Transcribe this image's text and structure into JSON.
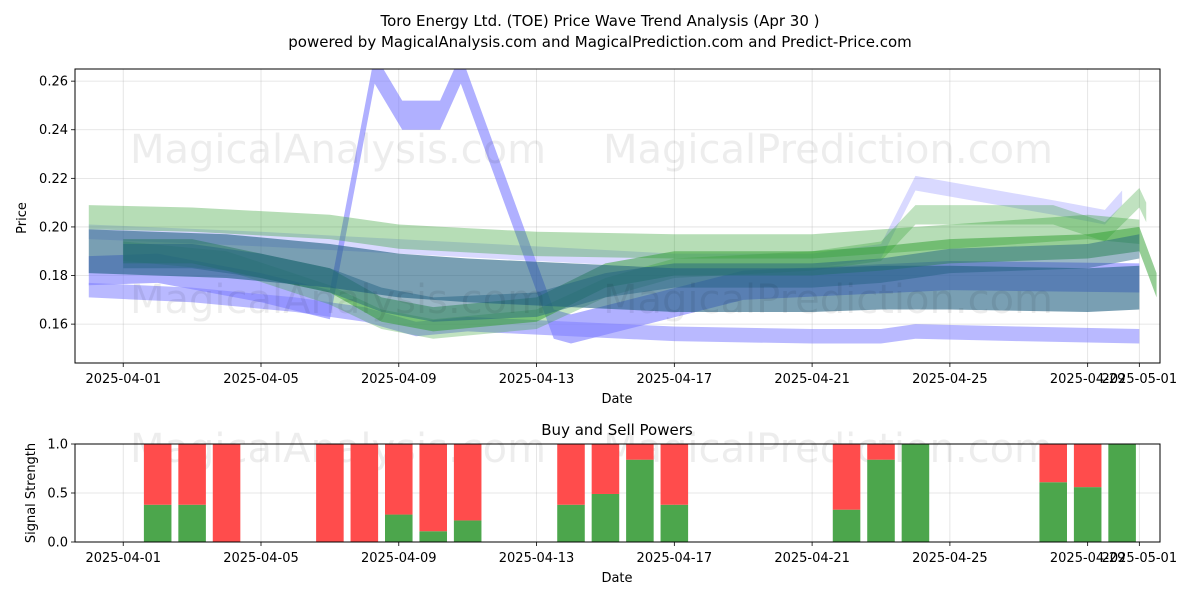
{
  "title_line1": "Toro Energy Ltd. (TOE) Price Wave Trend Analysis (Apr 30 )",
  "title_line2": "powered by MagicalAnalysis.com and MagicalPrediction.com and Predict-Price.com",
  "watermarks": [
    "MagicalAnalysis.com",
    "MagicalPrediction.com"
  ],
  "colors": {
    "buy": "#4ca64c",
    "sell": "#ff4c4c",
    "blue_band": "#8080ff",
    "green_band": "#2e9e2e",
    "dark_band": "#1f5f80"
  },
  "chart_data": [
    {
      "type": "area",
      "title": "",
      "xlabel": "Date",
      "ylabel": "Price",
      "xlim": [
        -1.4,
        30.1
      ],
      "ylim": [
        0.144,
        0.265
      ],
      "x_ticks": [
        {
          "x": 0,
          "label": "2025-04-01"
        },
        {
          "x": 4,
          "label": "2025-04-05"
        },
        {
          "x": 8,
          "label": "2025-04-09"
        },
        {
          "x": 12,
          "label": "2025-04-13"
        },
        {
          "x": 16,
          "label": "2025-04-17"
        },
        {
          "x": 20,
          "label": "2025-04-21"
        },
        {
          "x": 24,
          "label": "2025-04-25"
        },
        {
          "x": 28,
          "label": "2025-04-29"
        },
        {
          "x": 29.5,
          "label": "2025-05-01"
        }
      ],
      "y_ticks": [
        0.16,
        0.18,
        0.2,
        0.22,
        0.24,
        0.26
      ],
      "series": [
        {
          "name": "blue-wave-spike",
          "color": "#7070ff",
          "opacity": 0.55,
          "width": 0.012,
          "points": [
            [
              -1,
              0.182
            ],
            [
              1,
              0.183
            ],
            [
              4,
              0.175
            ],
            [
              6,
              0.168
            ],
            [
              7.3,
              0.265
            ],
            [
              8.1,
              0.246
            ],
            [
              9.2,
              0.246
            ],
            [
              9.8,
              0.265
            ],
            [
              12.5,
              0.16
            ],
            [
              13,
              0.158
            ],
            [
              18,
              0.176
            ],
            [
              24,
              0.18
            ],
            [
              29.5,
              0.179
            ]
          ]
        },
        {
          "name": "blue-wave-lower",
          "color": "#8080ff",
          "opacity": 0.55,
          "width": 0.006,
          "points": [
            [
              -1,
              0.174
            ],
            [
              2,
              0.172
            ],
            [
              5,
              0.168
            ],
            [
              7,
              0.164
            ],
            [
              8.5,
              0.158
            ],
            [
              10,
              0.16
            ],
            [
              13,
              0.158
            ],
            [
              16,
              0.156
            ],
            [
              20,
              0.155
            ],
            [
              22,
              0.155
            ],
            [
              23,
              0.157
            ],
            [
              26,
              0.156
            ],
            [
              29.5,
              0.155
            ]
          ]
        },
        {
          "name": "blue-wave-upper",
          "color": "#8080ff",
          "opacity": 0.3,
          "width": 0.006,
          "points": [
            [
              -1,
              0.198
            ],
            [
              4,
              0.195
            ],
            [
              8,
              0.192
            ],
            [
              12,
              0.189
            ],
            [
              16,
              0.186
            ],
            [
              20,
              0.186
            ],
            [
              22,
              0.19
            ],
            [
              23,
              0.218
            ],
            [
              27,
              0.208
            ],
            [
              28.5,
              0.204
            ],
            [
              29,
              0.212
            ]
          ]
        },
        {
          "name": "green-wave-upper",
          "color": "#2e9e2e",
          "opacity": 0.35,
          "width": 0.01,
          "points": [
            [
              -1,
              0.204
            ],
            [
              2,
              0.203
            ],
            [
              6,
              0.2
            ],
            [
              8,
              0.196
            ],
            [
              12,
              0.193
            ],
            [
              16,
              0.192
            ],
            [
              20,
              0.192
            ],
            [
              24,
              0.196
            ],
            [
              28,
              0.2
            ],
            [
              29.5,
              0.198
            ]
          ]
        },
        {
          "name": "green-wave-main",
          "color": "#2e9e2e",
          "opacity": 0.5,
          "width": 0.01,
          "points": [
            [
              0,
              0.19
            ],
            [
              2,
              0.19
            ],
            [
              4,
              0.184
            ],
            [
              6,
              0.178
            ],
            [
              7.5,
              0.166
            ],
            [
              9,
              0.162
            ],
            [
              12,
              0.166
            ],
            [
              14,
              0.18
            ],
            [
              16,
              0.185
            ],
            [
              20,
              0.185
            ],
            [
              22,
              0.187
            ],
            [
              24,
              0.19
            ],
            [
              28,
              0.192
            ],
            [
              29.5,
              0.195
            ],
            [
              30,
              0.176
            ]
          ]
        },
        {
          "name": "green-wave-high",
          "color": "#2e9e2e",
          "opacity": 0.3,
          "width": 0.008,
          "points": [
            [
              0,
              0.19
            ],
            [
              3,
              0.186
            ],
            [
              6,
              0.172
            ],
            [
              7.5,
              0.162
            ],
            [
              9,
              0.158
            ],
            [
              12,
              0.162
            ],
            [
              14,
              0.175
            ],
            [
              16,
              0.183
            ],
            [
              20,
              0.186
            ],
            [
              22,
              0.19
            ],
            [
              23,
              0.205
            ],
            [
              27,
              0.205
            ],
            [
              28.5,
              0.198
            ],
            [
              29.5,
              0.212
            ],
            [
              29.7,
              0.206
            ]
          ]
        },
        {
          "name": "dark-wave-base",
          "color": "#1f5f80",
          "opacity": 0.6,
          "width": 0.018,
          "points": [
            [
              -1,
              0.19
            ],
            [
              3,
              0.188
            ],
            [
              6,
              0.184
            ],
            [
              8,
              0.18
            ],
            [
              10,
              0.178
            ],
            [
              13,
              0.176
            ],
            [
              16,
              0.174
            ],
            [
              20,
              0.174
            ],
            [
              22,
              0.175
            ],
            [
              24,
              0.175
            ],
            [
              28,
              0.174
            ],
            [
              29.5,
              0.175
            ]
          ]
        },
        {
          "name": "dark-wave-upper",
          "color": "#1f5f80",
          "opacity": 0.45,
          "width": 0.01,
          "points": [
            [
              0,
              0.188
            ],
            [
              2,
              0.188
            ],
            [
              4,
              0.184
            ],
            [
              6,
              0.178
            ],
            [
              7.5,
              0.17
            ],
            [
              9,
              0.166
            ],
            [
              12,
              0.168
            ],
            [
              14,
              0.176
            ],
            [
              16,
              0.18
            ],
            [
              20,
              0.18
            ],
            [
              22,
              0.182
            ],
            [
              24,
              0.186
            ],
            [
              28,
              0.188
            ],
            [
              29.5,
              0.192
            ]
          ]
        }
      ]
    },
    {
      "type": "bar",
      "title": "Buy and Sell Powers",
      "xlabel": "Date",
      "ylabel": "Signal Strength",
      "xlim": [
        -1.4,
        30.1
      ],
      "ylim": [
        0,
        1.0
      ],
      "x_ticks": [
        {
          "x": 0,
          "label": "2025-04-01"
        },
        {
          "x": 4,
          "label": "2025-04-05"
        },
        {
          "x": 8,
          "label": "2025-04-09"
        },
        {
          "x": 12,
          "label": "2025-04-13"
        },
        {
          "x": 16,
          "label": "2025-04-17"
        },
        {
          "x": 20,
          "label": "2025-04-21"
        },
        {
          "x": 24,
          "label": "2025-04-25"
        },
        {
          "x": 28,
          "label": "2025-04-29"
        },
        {
          "x": 29.5,
          "label": "2025-05-01"
        }
      ],
      "y_ticks": [
        0.0,
        0.5,
        1.0
      ],
      "categories": [
        "2025-04-02",
        "2025-04-03",
        "2025-04-04",
        "2025-04-07",
        "2025-04-08",
        "2025-04-09",
        "2025-04-10",
        "2025-04-11",
        "2025-04-14",
        "2025-04-15",
        "2025-04-16",
        "2025-04-17",
        "2025-04-22",
        "2025-04-23",
        "2025-04-24",
        "2025-04-28",
        "2025-04-29",
        "2025-04-30"
      ],
      "x_positions": [
        1,
        2,
        3,
        6,
        7,
        8,
        9,
        10,
        13,
        14,
        15,
        16,
        21,
        22,
        23,
        27,
        28,
        29
      ],
      "series": [
        {
          "name": "Buy",
          "color": "#4ca64c",
          "values": [
            0.38,
            0.38,
            0.0,
            0.0,
            0.0,
            0.28,
            0.11,
            0.22,
            0.38,
            0.49,
            0.84,
            0.38,
            0.33,
            0.84,
            1.0,
            0.61,
            0.56,
            1.0
          ]
        },
        {
          "name": "Sell",
          "color": "#ff4c4c",
          "values": [
            0.62,
            0.62,
            1.0,
            1.0,
            1.0,
            0.72,
            0.89,
            0.78,
            0.62,
            0.51,
            0.16,
            0.62,
            0.67,
            0.16,
            0.0,
            0.39,
            0.44,
            0.0
          ]
        }
      ]
    }
  ]
}
